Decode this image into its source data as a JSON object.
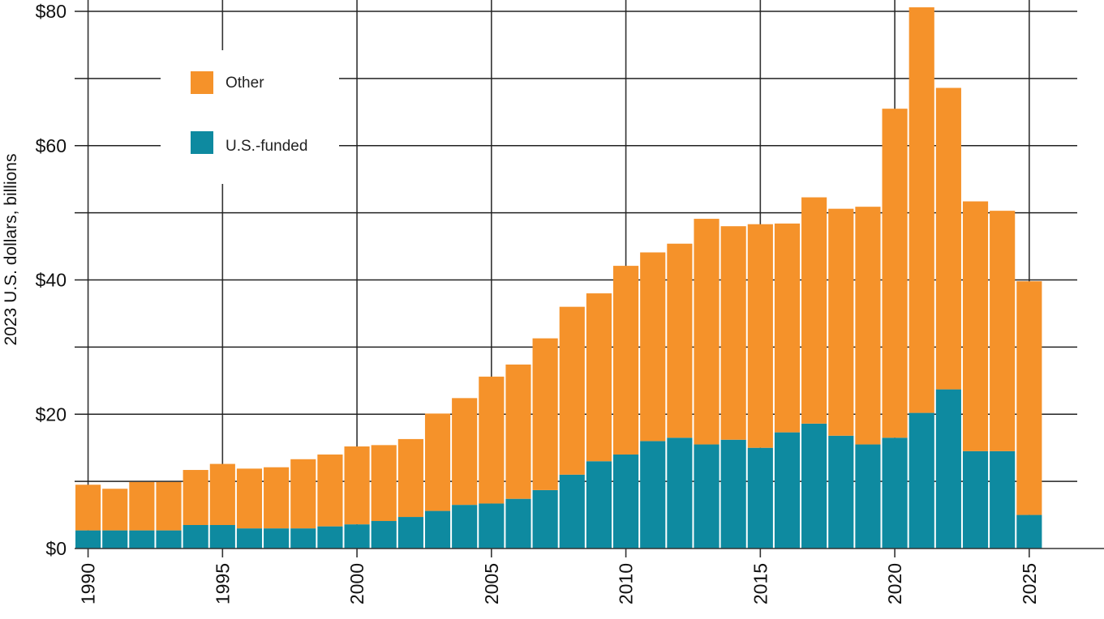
{
  "chart_data": {
    "type": "bar",
    "stacked": true,
    "title": "",
    "xlabel": "",
    "ylabel": "2023 U.S. dollars, billions",
    "ylim": [
      0,
      80
    ],
    "yticks": [
      0,
      20,
      40,
      60,
      80
    ],
    "ytick_labels": [
      "$0",
      "$20",
      "$40",
      "$60",
      "$80"
    ],
    "minor_gridlines": [
      10,
      30,
      50,
      70
    ],
    "xlim": [
      1989.5,
      2027.5
    ],
    "xticks": [
      1990,
      1995,
      2000,
      2005,
      2010,
      2015,
      2020,
      2025
    ],
    "xtick_labels": [
      "1990",
      "1995",
      "2000",
      "2005",
      "2010",
      "2015",
      "2020",
      "2025"
    ],
    "categories": [
      1990,
      1991,
      1992,
      1993,
      1994,
      1995,
      1996,
      1997,
      1998,
      1999,
      2000,
      2001,
      2002,
      2003,
      2004,
      2005,
      2006,
      2007,
      2008,
      2009,
      2010,
      2011,
      2012,
      2013,
      2014,
      2015,
      2016,
      2017,
      2018,
      2019,
      2020,
      2021,
      2022,
      2023,
      2024,
      2025
    ],
    "series": [
      {
        "name": "U.S.-funded",
        "color": "#0e8aa0",
        "values": [
          2.7,
          2.7,
          2.7,
          2.7,
          3.5,
          3.5,
          3.0,
          3.0,
          3.0,
          3.3,
          3.6,
          4.1,
          4.7,
          5.6,
          6.5,
          6.7,
          7.4,
          8.7,
          11.0,
          13.0,
          14.0,
          16.0,
          16.5,
          15.5,
          16.2,
          15.0,
          17.3,
          18.6,
          16.8,
          15.5,
          16.5,
          20.2,
          23.7,
          14.5,
          14.5,
          5.0
        ]
      },
      {
        "name": "Other",
        "color": "#f5922a",
        "values": [
          6.8,
          6.2,
          7.2,
          7.2,
          8.2,
          9.1,
          8.9,
          9.1,
          10.3,
          10.7,
          11.6,
          11.3,
          11.6,
          14.5,
          15.9,
          18.9,
          20.0,
          22.6,
          25.0,
          25.0,
          28.1,
          28.1,
          28.9,
          33.6,
          31.8,
          33.3,
          31.1,
          33.7,
          33.8,
          35.4,
          49.0,
          60.4,
          44.9,
          37.2,
          35.8,
          34.8
        ]
      }
    ],
    "legend": {
      "placement": "top-left",
      "entries": [
        {
          "label": "Other",
          "color": "#f5922a"
        },
        {
          "label": "U.S.-funded",
          "color": "#0e8aa0"
        }
      ]
    }
  }
}
